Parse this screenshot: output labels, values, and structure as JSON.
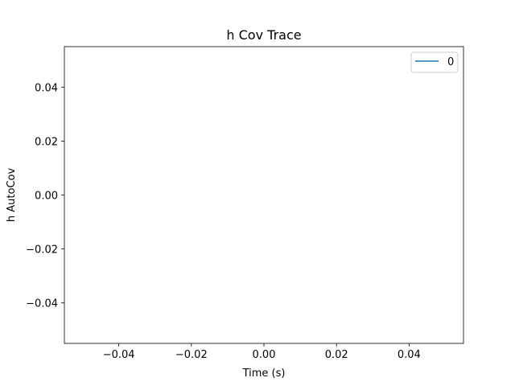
{
  "chart_data": {
    "type": "line",
    "title": "h Cov Trace",
    "xlabel": "Time (s)",
    "ylabel": "h AutoCov",
    "xlim": [
      -0.055,
      0.055
    ],
    "ylim": [
      -0.055,
      0.055
    ],
    "x_ticks": [
      -0.04,
      -0.02,
      0.0,
      0.02,
      0.04
    ],
    "x_tick_labels": [
      "−0.04",
      "−0.02",
      "0.00",
      "0.02",
      "0.04"
    ],
    "y_ticks": [
      0.04,
      0.02,
      0.0,
      -0.02,
      -0.04
    ],
    "y_tick_labels": [
      "0.04",
      "0.02",
      "0.00",
      "−0.02",
      "−0.04"
    ],
    "grid": false,
    "legend_position": "top-right",
    "series": [
      {
        "name": "0",
        "color": "#1f77b4",
        "x": [],
        "y": []
      }
    ]
  }
}
